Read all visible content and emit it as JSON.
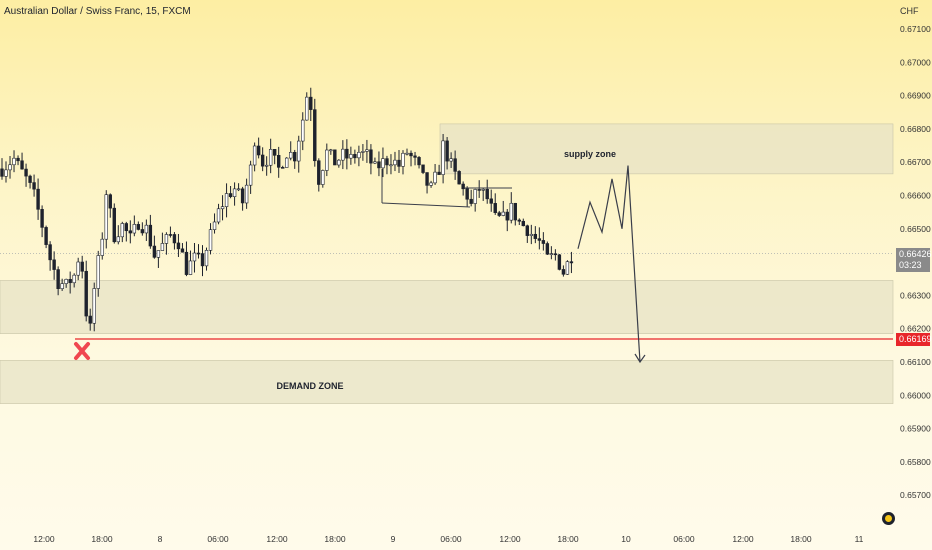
{
  "title": "Australian Dollar / Swiss Franc, 15, FXCM",
  "currency": "CHF",
  "current_price": "0.66426",
  "countdown": "03:23",
  "red_line_price": "0.66169",
  "colors": {
    "candle": "#1e222d",
    "zone_fill": "#e7e3c5",
    "red_line": "#e8262a",
    "price_tag": "#8a8a8a",
    "x_marker": "#f0474f"
  },
  "icons": [
    "x-mark-icon",
    "tradingview-logo-icon"
  ],
  "chart_data": {
    "type": "candlestick",
    "title": "Australian Dollar / Swiss Franc, 15, FXCM",
    "xlabel": "",
    "ylabel": "",
    "y_ticks": [
      "0.67100",
      "0.67000",
      "0.66900",
      "0.66800",
      "0.66700",
      "0.66600",
      "0.66500",
      "0.66300",
      "0.66200",
      "0.66100",
      "0.66000",
      "0.65900",
      "0.65800",
      "0.65700"
    ],
    "x_ticks": [
      "12:00",
      "18:00",
      "8",
      "06:00",
      "12:00",
      "18:00",
      "9",
      "06:00",
      "12:00",
      "18:00",
      "10",
      "06:00",
      "12:00",
      "18:00",
      "11"
    ],
    "ylim": [
      0.6566,
      0.6722
    ],
    "grid": false,
    "series": [
      {
        "close_path": [
          [
            0,
            0.6668
          ],
          [
            3,
            0.6671
          ],
          [
            6,
            0.6665
          ],
          [
            8,
            0.666
          ],
          [
            10,
            0.6651
          ],
          [
            12,
            0.6641
          ],
          [
            14,
            0.6634
          ],
          [
            16,
            0.6633
          ],
          [
            18,
            0.6636
          ],
          [
            19,
            0.6641
          ],
          [
            20,
            0.6638
          ],
          [
            21,
            0.6625
          ],
          [
            22,
            0.662
          ],
          [
            23,
            0.6632
          ],
          [
            25,
            0.6648
          ],
          [
            26,
            0.6661
          ],
          [
            28,
            0.6648
          ],
          [
            30,
            0.6651
          ],
          [
            32,
            0.6647
          ],
          [
            34,
            0.6652
          ],
          [
            36,
            0.665
          ],
          [
            38,
            0.6642
          ],
          [
            40,
            0.6645
          ],
          [
            42,
            0.6648
          ],
          [
            44,
            0.6646
          ],
          [
            46,
            0.6638
          ],
          [
            48,
            0.6641
          ],
          [
            50,
            0.664
          ],
          [
            52,
            0.6648
          ],
          [
            54,
            0.6655
          ],
          [
            56,
            0.666
          ],
          [
            58,
            0.6662
          ],
          [
            60,
            0.6658
          ],
          [
            62,
            0.6668
          ],
          [
            63,
            0.6677
          ],
          [
            65,
            0.667
          ],
          [
            67,
            0.6672
          ],
          [
            69,
            0.6668
          ],
          [
            71,
            0.6673
          ],
          [
            73,
            0.6672
          ],
          [
            75,
            0.6683
          ],
          [
            76,
            0.669
          ],
          [
            77,
            0.6687
          ],
          [
            78,
            0.6672
          ],
          [
            79,
            0.6665
          ],
          [
            81,
            0.6673
          ],
          [
            83,
            0.667
          ],
          [
            85,
            0.6672
          ],
          [
            87,
            0.6671
          ],
          [
            89,
            0.6673
          ],
          [
            91,
            0.6672
          ],
          [
            93,
            0.6668
          ],
          [
            95,
            0.667
          ],
          [
            97,
            0.6671
          ],
          [
            99,
            0.6669
          ],
          [
            101,
            0.6673
          ],
          [
            103,
            0.667
          ],
          [
            105,
            0.6665
          ],
          [
            107,
            0.6662
          ],
          [
            109,
            0.6668
          ],
          [
            110,
            0.6675
          ],
          [
            112,
            0.6669
          ],
          [
            114,
            0.6663
          ],
          [
            116,
            0.666
          ],
          [
            117,
            0.6657
          ],
          [
            118,
            0.666
          ],
          [
            119,
            0.6662
          ],
          [
            121,
            0.6659
          ],
          [
            123,
            0.6653
          ],
          [
            125,
            0.6653
          ],
          [
            127,
            0.6656
          ],
          [
            129,
            0.6652
          ],
          [
            131,
            0.665
          ],
          [
            133,
            0.6647
          ],
          [
            134,
            0.6646
          ],
          [
            136,
            0.6641
          ],
          [
            138,
            0.6642
          ],
          [
            140,
            0.6637
          ],
          [
            142,
            0.6642
          ]
        ]
      }
    ],
    "zones": [
      {
        "label": "supply zone",
        "from": 0.66665,
        "to": 0.66815
      },
      {
        "label": "",
        "from": 0.66185,
        "to": 0.66345
      },
      {
        "label": "DEMAND ZONE",
        "from": 0.65975,
        "to": 0.66105
      }
    ],
    "projection": [
      0.6644,
      0.6658,
      0.6649,
      0.6665,
      0.665,
      0.6669,
      0.661
    ],
    "annotations": [
      "supply zone",
      "DEMAND ZONE"
    ],
    "horizontal_line": 0.66169,
    "last_price": 0.66426
  }
}
